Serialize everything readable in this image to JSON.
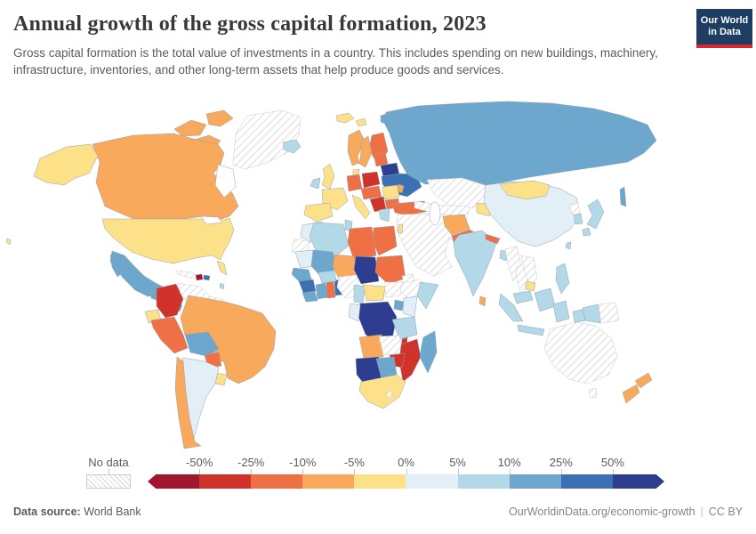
{
  "header": {
    "title": "Annual growth of the gross capital formation, 2023",
    "subtitle": "Gross capital formation is the total value of investments in a country. This includes spending on new buildings, machinery, infrastructure, inventories, and other long-term assets that help produce goods and services.",
    "logo": {
      "line1": "Our World",
      "line2": "in Data",
      "bg_color": "#1d3d63",
      "accent_color": "#d7282f"
    }
  },
  "chart_data": {
    "type": "choropleth_map",
    "title": "Annual growth of the gross capital formation, 2023",
    "unit": "%",
    "legend_position": "bottom",
    "no_data_label": "No data",
    "legend_ticks": [
      "-50%",
      "-25%",
      "-10%",
      "-5%",
      "0%",
      "5%",
      "10%",
      "25%",
      "50%"
    ],
    "bin_colors": [
      "#a1152f",
      "#cf3329",
      "#ee7044",
      "#f8a95c",
      "#fce189",
      "#e3eff6",
      "#b3d8e8",
      "#6ea7ce",
      "#3b70b3",
      "#2d3d8f"
    ],
    "palette": {
      "b1": "#a1152f",
      "b2": "#cf3329",
      "b3": "#ee7044",
      "b4": "#f8a95c",
      "b5": "#fce189",
      "b6": "#e3eff6",
      "b7": "#b3d8e8",
      "b8": "#6ea7ce",
      "b9": "#3b70b3",
      "b10": "#2d3d8f"
    },
    "bin_ranges": [
      "< -50%",
      "-50% to -25%",
      "-25% to -10%",
      "-10% to -5%",
      "-5% to 0%",
      "0% to 5%",
      "5% to 10%",
      "10% to 25%",
      "25% to 50%",
      "> 50%"
    ],
    "country_bins": {
      "greenland": "nd",
      "canada": "b4",
      "canada-arctic1": "b4",
      "canada-arctic2": "b4",
      "canada-arctic3": "b4",
      "alaska": "b5",
      "usa": "b5",
      "hawaii": "b5",
      "mexico": "b8",
      "guatemala": "b8",
      "honduras": "b3",
      "panama-costa": "b8",
      "cuba": "nd",
      "haiti": "b1",
      "dominican": "b9",
      "antilles": "b7",
      "colombia": "b2",
      "venezuela": "nd",
      "guyanas": "nd",
      "ecuador": "b5",
      "peru": "b3",
      "brazil": "b4",
      "bolivia": "b8",
      "paraguay": "b3",
      "uruguay": "b5",
      "argentina": "b6",
      "chile": "b4",
      "iceland": "b7",
      "svalbard": "b5",
      "norway": "b4",
      "sweden": "b4",
      "finland": "b3",
      "denmark": "b5",
      "uk": "b5",
      "ireland": "b7",
      "germany": "b3",
      "poland": "b2",
      "baltics": "b3",
      "belarus": "b10",
      "ukraine": "b9",
      "france": "b5",
      "spain": "b5",
      "italy": "b5",
      "central-europe": "b3",
      "balkans": "b2",
      "romania": "b5",
      "bulgaria": "b3",
      "greece": "b7",
      "moldova": "b4",
      "turkey": "b3",
      "russia": "b8",
      "novaya-zemlya": "b8",
      "sakhalin": "b8",
      "kazakhstan": "nd",
      "uzbek-turkmen": "nd",
      "kyrgyz-tajik": "b5",
      "caucasus": "nd",
      "middle-east": "nd",
      "israel-jordan": "b5",
      "afghanistan": "b4",
      "pakistan": "b3",
      "india": "b7",
      "nepal": "b3",
      "bangladesh": "b7",
      "sri-lanka": "b4",
      "china": "b6",
      "mongolia": "b5",
      "myanmar": "nd",
      "thailand": "nd",
      "indochina": "nd",
      "cambodia": "b5",
      "north-korea": "nd",
      "south-korea": "b7",
      "japan": "b7",
      "taiwan": "b7",
      "philippines": "b7",
      "malaysia": "b7",
      "borneo": "b7",
      "sumatra": "b7",
      "java": "b7",
      "sulawesi": "b7",
      "west-papua": "b7",
      "papua-new-guinea": "nd",
      "morocco": "b6",
      "western-sahara": "nd",
      "algeria": "b7",
      "tunisia": "b7",
      "libya": "b3",
      "egypt": "b3",
      "mauritania": "b6",
      "mali": "b8",
      "niger": "b4",
      "chad": "b10",
      "sudan": "b3",
      "eritrea": "nd",
      "ethiopia": "nd",
      "somalia": "b7",
      "senegal": "b8",
      "guinea": "b9",
      "sierra-liberia": "b8",
      "ivory-coast": "b8",
      "ghana": "b3",
      "togo-benin": "b9",
      "burkina": "b7",
      "nigeria": "nd",
      "cameroon": "b7",
      "car": "b5",
      "south-sudan": "nd",
      "uganda": "b8",
      "kenya": "b6",
      "drc": "b10",
      "congo-gabon": "b6",
      "tanzania": "b7",
      "angola": "b4",
      "zambia": "nd",
      "malawi": "b2",
      "mozambique": "b2",
      "zimbabwe": "b2",
      "madagascar": "b8",
      "namibia": "b10",
      "botswana": "b8",
      "south-africa": "b5",
      "lesotho": "nd",
      "australia": "nd",
      "tasmania": "nd",
      "nz-north": "b4",
      "nz-south": "b4"
    }
  },
  "footer": {
    "source_label": "Data source:",
    "source_value": "World Bank",
    "link_text": "OurWorldinData.org/economic-growth",
    "divider": "|",
    "license_text": "CC BY"
  }
}
